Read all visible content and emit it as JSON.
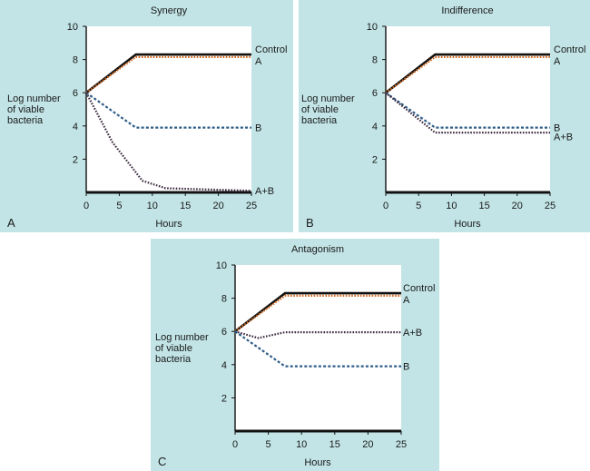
{
  "chart_data": [
    {
      "type": "line",
      "panel_label": "A",
      "title": "Synergy",
      "xlabel": "Hours",
      "ylabel": [
        "Log number",
        "of viable",
        "bacteria"
      ],
      "xlim": [
        0,
        25
      ],
      "ylim": [
        0,
        10
      ],
      "xticks": [
        0,
        5,
        10,
        15,
        20,
        25
      ],
      "yticks": [
        2,
        4,
        6,
        8,
        10
      ],
      "series": [
        {
          "name": "Control",
          "color": "#111111",
          "style": "solid",
          "points": [
            [
              0,
              6
            ],
            [
              7.5,
              8.3
            ],
            [
              25,
              8.3
            ]
          ]
        },
        {
          "name": "A",
          "color": "#d2691e",
          "style": "dotted",
          "points": [
            [
              0,
              6
            ],
            [
              7.5,
              8.15
            ],
            [
              25,
              8.15
            ]
          ]
        },
        {
          "name": "B",
          "color": "#2e5c87",
          "style": "dashed",
          "points": [
            [
              0,
              6
            ],
            [
              7.5,
              3.9
            ],
            [
              25,
              3.9
            ]
          ]
        },
        {
          "name": "A+B",
          "color": "#3b2a3f",
          "style": "dotted",
          "points": [
            [
              0,
              6
            ],
            [
              4,
              3
            ],
            [
              8.5,
              0.7
            ],
            [
              12,
              0.25
            ],
            [
              25,
              0.1
            ]
          ]
        }
      ]
    },
    {
      "type": "line",
      "panel_label": "B",
      "title": "Indifference",
      "xlabel": "Hours",
      "ylabel": [
        "Log number",
        "of viable",
        "bacteria"
      ],
      "xlim": [
        0,
        25
      ],
      "ylim": [
        0,
        10
      ],
      "xticks": [
        0,
        5,
        10,
        15,
        20,
        25
      ],
      "yticks": [
        2,
        4,
        6,
        8,
        10
      ],
      "series": [
        {
          "name": "Control",
          "color": "#111111",
          "style": "solid",
          "points": [
            [
              0,
              6
            ],
            [
              7.5,
              8.3
            ],
            [
              25,
              8.3
            ]
          ]
        },
        {
          "name": "A",
          "color": "#d2691e",
          "style": "dotted",
          "points": [
            [
              0,
              6
            ],
            [
              7.5,
              8.15
            ],
            [
              25,
              8.15
            ]
          ]
        },
        {
          "name": "B",
          "color": "#2e5c87",
          "style": "dashed",
          "points": [
            [
              0,
              6
            ],
            [
              7.5,
              3.9
            ],
            [
              25,
              3.9
            ]
          ]
        },
        {
          "name": "A+B",
          "color": "#3b2a3f",
          "style": "dotted",
          "points": [
            [
              0,
              6
            ],
            [
              7.5,
              3.6
            ],
            [
              25,
              3.6
            ]
          ]
        }
      ]
    },
    {
      "type": "line",
      "panel_label": "C",
      "title": "Antagonism",
      "xlabel": "Hours",
      "ylabel": [
        "Log number",
        "of viable",
        "bacteria"
      ],
      "xlim": [
        0,
        25
      ],
      "ylim": [
        0,
        10
      ],
      "xticks": [
        0,
        5,
        10,
        15,
        20,
        25
      ],
      "yticks": [
        2,
        4,
        6,
        8,
        10
      ],
      "series": [
        {
          "name": "Control",
          "color": "#111111",
          "style": "solid",
          "points": [
            [
              0,
              6
            ],
            [
              7.5,
              8.3
            ],
            [
              25,
              8.3
            ]
          ]
        },
        {
          "name": "A",
          "color": "#d2691e",
          "style": "dotted",
          "points": [
            [
              0,
              6
            ],
            [
              7.5,
              8.15
            ],
            [
              25,
              8.15
            ]
          ]
        },
        {
          "name": "A+B",
          "color": "#3b2a3f",
          "style": "dotted",
          "points": [
            [
              0,
              6
            ],
            [
              3.5,
              5.6
            ],
            [
              7.5,
              5.95
            ],
            [
              25,
              5.95
            ]
          ]
        },
        {
          "name": "B",
          "color": "#2e5c87",
          "style": "dashed",
          "points": [
            [
              0,
              6
            ],
            [
              7.5,
              3.9
            ],
            [
              25,
              3.9
            ]
          ]
        }
      ]
    }
  ]
}
